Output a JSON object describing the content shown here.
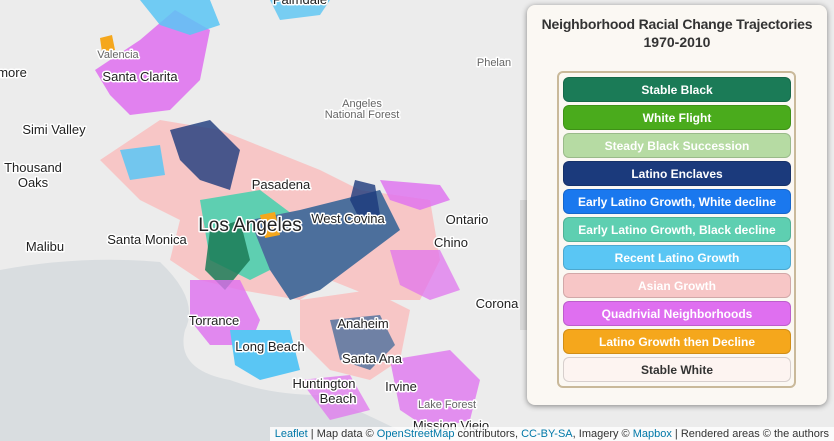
{
  "map": {
    "places": [
      "Palmdale",
      "Valencia",
      "Santa Clarita",
      "Phelan",
      "Angeles",
      "National Forest",
      "more",
      "Simi Valley",
      "Thousand",
      "Oaks",
      "Malibu",
      "Santa Monica",
      "Los Angeles",
      "Pasadena",
      "West Covina",
      "Ontario",
      "Chino",
      "Corona",
      "Torrance",
      "Long Beach",
      "Anaheim",
      "Santa Ana",
      "Huntington",
      "Beach",
      "Irvine",
      "Lake Forest",
      "Mission Viejo"
    ]
  },
  "legend": {
    "title": "Neighborhood Racial Change Trajectories",
    "subtitle": "1970-2010",
    "items": [
      {
        "label": "Stable Black",
        "color": "#1b7b57"
      },
      {
        "label": "White Flight",
        "color": "#4aab1c"
      },
      {
        "label": "Steady Black Succession",
        "color": "#b6dba3"
      },
      {
        "label": "Latino Enclaves",
        "color": "#1b3a7c"
      },
      {
        "label": "Early Latino Growth, White decline",
        "color": "#1a78ee"
      },
      {
        "label": "Early Latino Growth, Black decline",
        "color": "#5ecfb1"
      },
      {
        "label": "Recent Latino Growth",
        "color": "#5ac6f4"
      },
      {
        "label": "Asian Growth",
        "color": "#f7c6c6"
      },
      {
        "label": "Quadrivial Neighborhoods",
        "color": "#df6ff0"
      },
      {
        "label": "Latino Growth then Decline",
        "color": "#f5a71c"
      },
      {
        "label": "Stable White",
        "color": "#fdf4f1"
      }
    ]
  },
  "attribution": [
    {
      "text": "Leaflet",
      "link": true
    },
    {
      "text": " | Map data © ",
      "link": false
    },
    {
      "text": "OpenStreetMap",
      "link": true
    },
    {
      "text": " contributors, ",
      "link": false
    },
    {
      "text": "CC-BY-SA",
      "link": true
    },
    {
      "text": ", Imagery © ",
      "link": false
    },
    {
      "text": "Mapbox",
      "link": true
    },
    {
      "text": " | Rendered areas © the authors",
      "link": false
    }
  ]
}
